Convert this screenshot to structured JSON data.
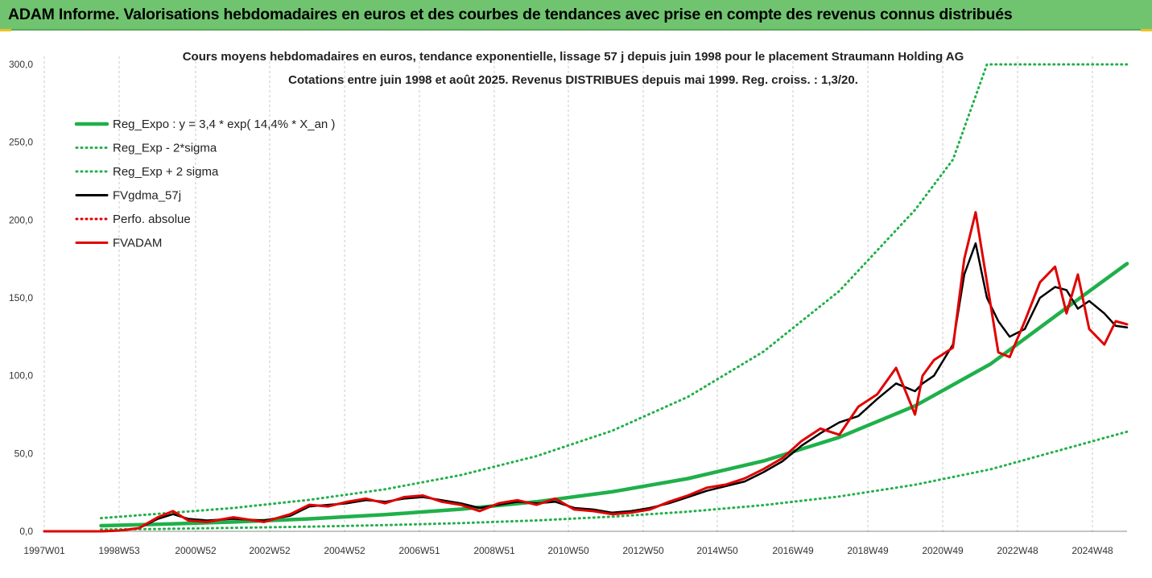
{
  "header": {
    "title": "ADAM Informe. Valorisations hebdomadaires en euros et des courbes de tendances avec prise en compte des revenus connus distribués"
  },
  "colors": {
    "banner": "#70c46f",
    "reg_green": "#1fb04a",
    "sigma_green": "#22b04a",
    "black": "#000000",
    "red": "#e00000"
  },
  "chart_data": {
    "type": "line",
    "title": "Cours moyens hebdomadaires en euros, tendance exponentielle, lissage 57 j depuis juin 1998 pour le placement Straumann Holding AG",
    "subtitle": "Cotations entre juin 1998 et août 2025. Revenus DISTRIBUES depuis mai 1999. Reg. croiss. : 1,3/20.",
    "ylim": [
      0,
      300
    ],
    "yticks": [
      "0,0",
      "50,0",
      "100,0",
      "150,0",
      "200,0",
      "250,0",
      "300,0"
    ],
    "xlim": [
      1997.0,
      2025.6
    ],
    "xticks": [
      "1997W01",
      "1998W53",
      "2000W52",
      "2002W52",
      "2004W52",
      "2006W51",
      "2008W51",
      "2010W50",
      "2012W50",
      "2014W50",
      "2016W49",
      "2018W49",
      "2020W49",
      "2022W48",
      "2024W48"
    ],
    "grid": "vertical",
    "legend_position": "top-left",
    "series": [
      {
        "name": "Reg_Expo : y = 3,4 * exp( 14,4% *  X_an )",
        "color": "#1fb04a",
        "style": "solid",
        "x": [
          1998.5,
          2000,
          2002,
          2004,
          2006,
          2008,
          2010,
          2012,
          2014,
          2016,
          2018,
          2020,
          2022,
          2024,
          2025.6
        ],
        "y": [
          3.6,
          4.5,
          6.0,
          8.0,
          10.7,
          14.2,
          19.0,
          25.4,
          33.9,
          45.2,
          60.4,
          80.6,
          107.6,
          143.6,
          172
        ]
      },
      {
        "name": "Reg_Exp - 2*sigma",
        "color": "#22b04a",
        "style": "dotted",
        "x": [
          1998.5,
          2000,
          2002,
          2004,
          2006,
          2008,
          2010,
          2012,
          2014,
          2016,
          2018,
          2020,
          2022,
          2024,
          2025.6
        ],
        "y": [
          1.2,
          1.5,
          2.2,
          3.0,
          4.0,
          5.3,
          7.0,
          9.4,
          12.6,
          16.8,
          22.4,
          29.9,
          39.9,
          53.3,
          64
        ]
      },
      {
        "name": "Reg_Exp + 2 sigma",
        "color": "#22b04a",
        "style": "dotted",
        "x": [
          1998.5,
          2000,
          2002,
          2004,
          2006,
          2008,
          2010,
          2012,
          2014,
          2016,
          2018,
          2020,
          2021,
          2021.9,
          2025.6
        ],
        "y": [
          8.5,
          11.2,
          15.0,
          20.2,
          27.0,
          36.1,
          48.3,
          64.6,
          86.4,
          115.5,
          154.4,
          206.5,
          238.8,
          300,
          300
        ]
      },
      {
        "name": "FVgdma_57j",
        "color": "#000000",
        "style": "solid",
        "x": [
          1997.0,
          1998.5,
          1999.0,
          1999.5,
          2000.0,
          2000.4,
          2000.8,
          2001.3,
          2002.0,
          2002.8,
          2003.5,
          2004.0,
          2004.5,
          2005.0,
          2005.5,
          2006.0,
          2006.5,
          2007.0,
          2007.5,
          2008.0,
          2008.5,
          2009.0,
          2009.5,
          2010.0,
          2010.5,
          2011.0,
          2011.5,
          2012.0,
          2012.5,
          2013.0,
          2013.5,
          2014.0,
          2014.5,
          2015.0,
          2015.5,
          2016.0,
          2016.5,
          2017.0,
          2017.5,
          2018.0,
          2018.5,
          2019.0,
          2019.5,
          2020.0,
          2020.2,
          2020.5,
          2021.0,
          2021.3,
          2021.6,
          2021.9,
          2022.2,
          2022.5,
          2022.9,
          2023.3,
          2023.7,
          2024.0,
          2024.3,
          2024.6,
          2025.0,
          2025.3,
          2025.6
        ],
        "y": [
          0,
          0,
          0.5,
          2,
          8,
          11,
          8,
          7,
          8,
          7,
          10,
          16,
          17,
          18,
          20,
          19,
          21,
          22,
          20,
          18,
          15,
          17,
          19,
          18,
          19,
          15,
          14,
          12,
          13,
          15,
          18,
          22,
          26,
          29,
          32,
          38,
          45,
          55,
          63,
          70,
          74,
          85,
          95,
          90,
          95,
          100,
          120,
          165,
          185,
          150,
          135,
          125,
          130,
          150,
          157,
          155,
          143,
          148,
          140,
          132,
          131
        ]
      },
      {
        "name": "Perfo. absolue",
        "color": "#e00000",
        "style": "dotted",
        "x": [
          1997.0,
          1998.5
        ],
        "y": [
          0,
          0
        ]
      },
      {
        "name": "FVADAM",
        "color": "#e00000",
        "style": "solid",
        "x": [
          1997.0,
          1998.5,
          1999.0,
          1999.5,
          2000.0,
          2000.4,
          2000.8,
          2001.3,
          2002.0,
          2002.8,
          2003.5,
          2004.0,
          2004.5,
          2005.0,
          2005.5,
          2006.0,
          2006.5,
          2007.0,
          2007.5,
          2008.0,
          2008.5,
          2009.0,
          2009.5,
          2010.0,
          2010.5,
          2011.0,
          2011.5,
          2012.0,
          2012.5,
          2013.0,
          2013.5,
          2014.0,
          2014.5,
          2015.0,
          2015.5,
          2016.0,
          2016.5,
          2017.0,
          2017.5,
          2018.0,
          2018.5,
          2019.0,
          2019.5,
          2020.0,
          2020.2,
          2020.5,
          2021.0,
          2021.3,
          2021.6,
          2021.9,
          2022.2,
          2022.5,
          2022.9,
          2023.3,
          2023.7,
          2024.0,
          2024.3,
          2024.6,
          2025.0,
          2025.3,
          2025.6
        ],
        "y": [
          0,
          0,
          0.5,
          2,
          9,
          13,
          7,
          6,
          9,
          6,
          11,
          17,
          16,
          19,
          21,
          18,
          22,
          23,
          19,
          17,
          13,
          18,
          20,
          17,
          21,
          14,
          13,
          11,
          12,
          14,
          19,
          23,
          28,
          30,
          34,
          40,
          47,
          58,
          66,
          62,
          80,
          88,
          105,
          75,
          100,
          110,
          118,
          175,
          205,
          160,
          115,
          112,
          135,
          160,
          170,
          140,
          165,
          130,
          120,
          135,
          133
        ]
      }
    ]
  }
}
